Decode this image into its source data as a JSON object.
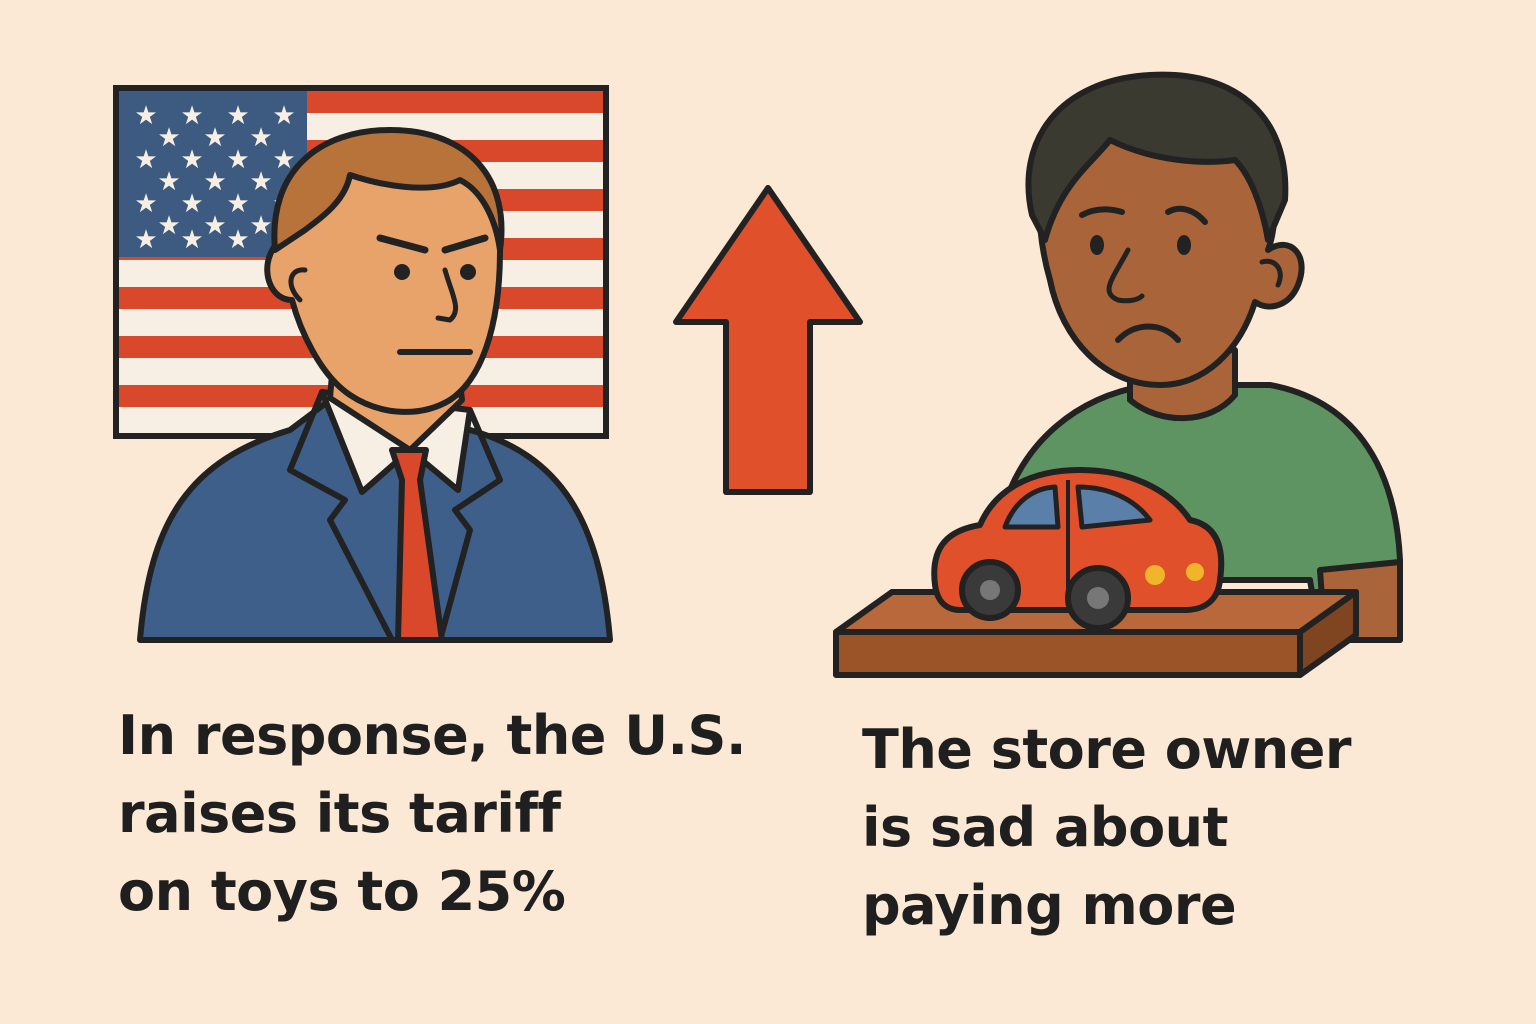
{
  "left_panel": {
    "caption_lines": [
      "In response, the U.S.",
      "raises its tariff",
      "on toys to 25%"
    ]
  },
  "right_panel": {
    "caption_lines": [
      "The store owner",
      "is sad about",
      "paying more"
    ]
  },
  "center": {
    "icon": "up-arrow-icon"
  },
  "colors": {
    "background": "#fbe9d5",
    "outline": "#222222",
    "flag_blue": "#3d5a80",
    "flag_red": "#d9482b",
    "suit": "#3e5f8a",
    "tie": "#d9482b",
    "skin_left": "#e8a36a",
    "hair_left": "#b8733a",
    "skin_right": "#a9643a",
    "hair_right": "#3a3a30",
    "shirt_right": "#5e9462",
    "arrow": "#e0502a",
    "toy_car": "#e0502a",
    "counter": "#9a5428"
  }
}
